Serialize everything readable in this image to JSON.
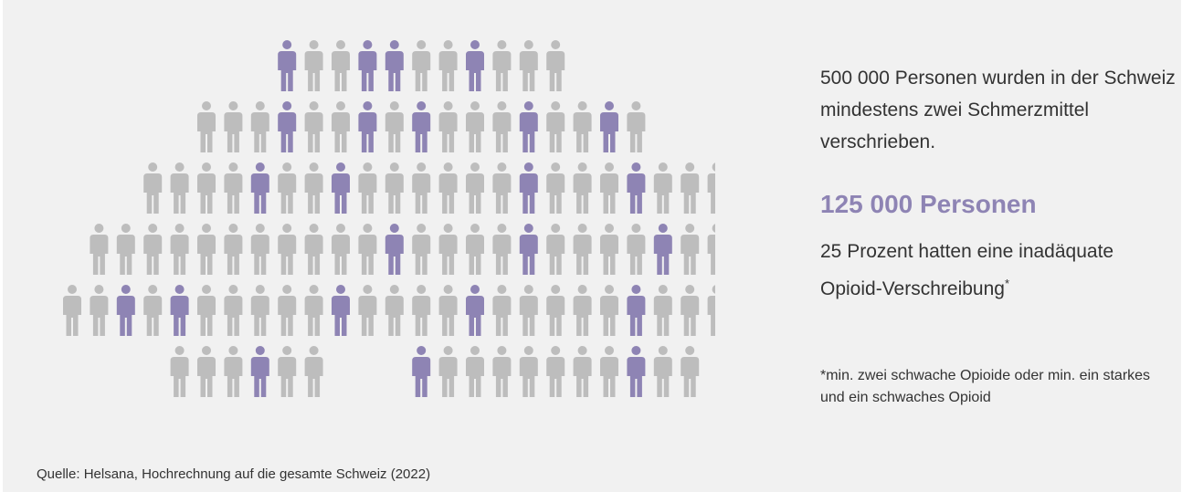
{
  "texts": {
    "statement": "500 000 Personen wurden in der Schweiz mindestens zwei Schmerzmittel verschrieben.",
    "highlight": "125 000 Personen",
    "detail": "25 Prozent hatten eine inadäquate Opioid-Verschreibung",
    "detail_mark": "*",
    "footnote": "*min. zwei schwache Opioide oder min. ein starkes und ein schwaches Opioid",
    "source": "Quelle: Helsana, Hochrechnung auf die gesamte Schweiz (2022)"
  },
  "colors": {
    "highlighted": "#8e84b4",
    "regular": "#bdbdbd",
    "background": "#f1f1f1"
  },
  "chart_data": {
    "type": "pictogram",
    "icon": "person-icon",
    "rows": [
      "#  ##  #   ",
      "   #  # #   #  # ",
      "    #  #      #   #      ",
      "           #    #    #        #  #",
      "  # #     #    #     #   ",
      "   #  #       #  "
    ],
    "row_offsets": [
      8,
      5,
      3,
      1,
      0,
      4
    ],
    "row_gaps": [
      {
        "row": 5,
        "after": 6,
        "size": 3
      }
    ],
    "total_icons": 100,
    "highlighted_icons": 25,
    "series": [
      {
        "name": "125 000 Personen",
        "value": 25
      },
      {
        "name": "500 000 Personen",
        "value": 100
      }
    ]
  }
}
